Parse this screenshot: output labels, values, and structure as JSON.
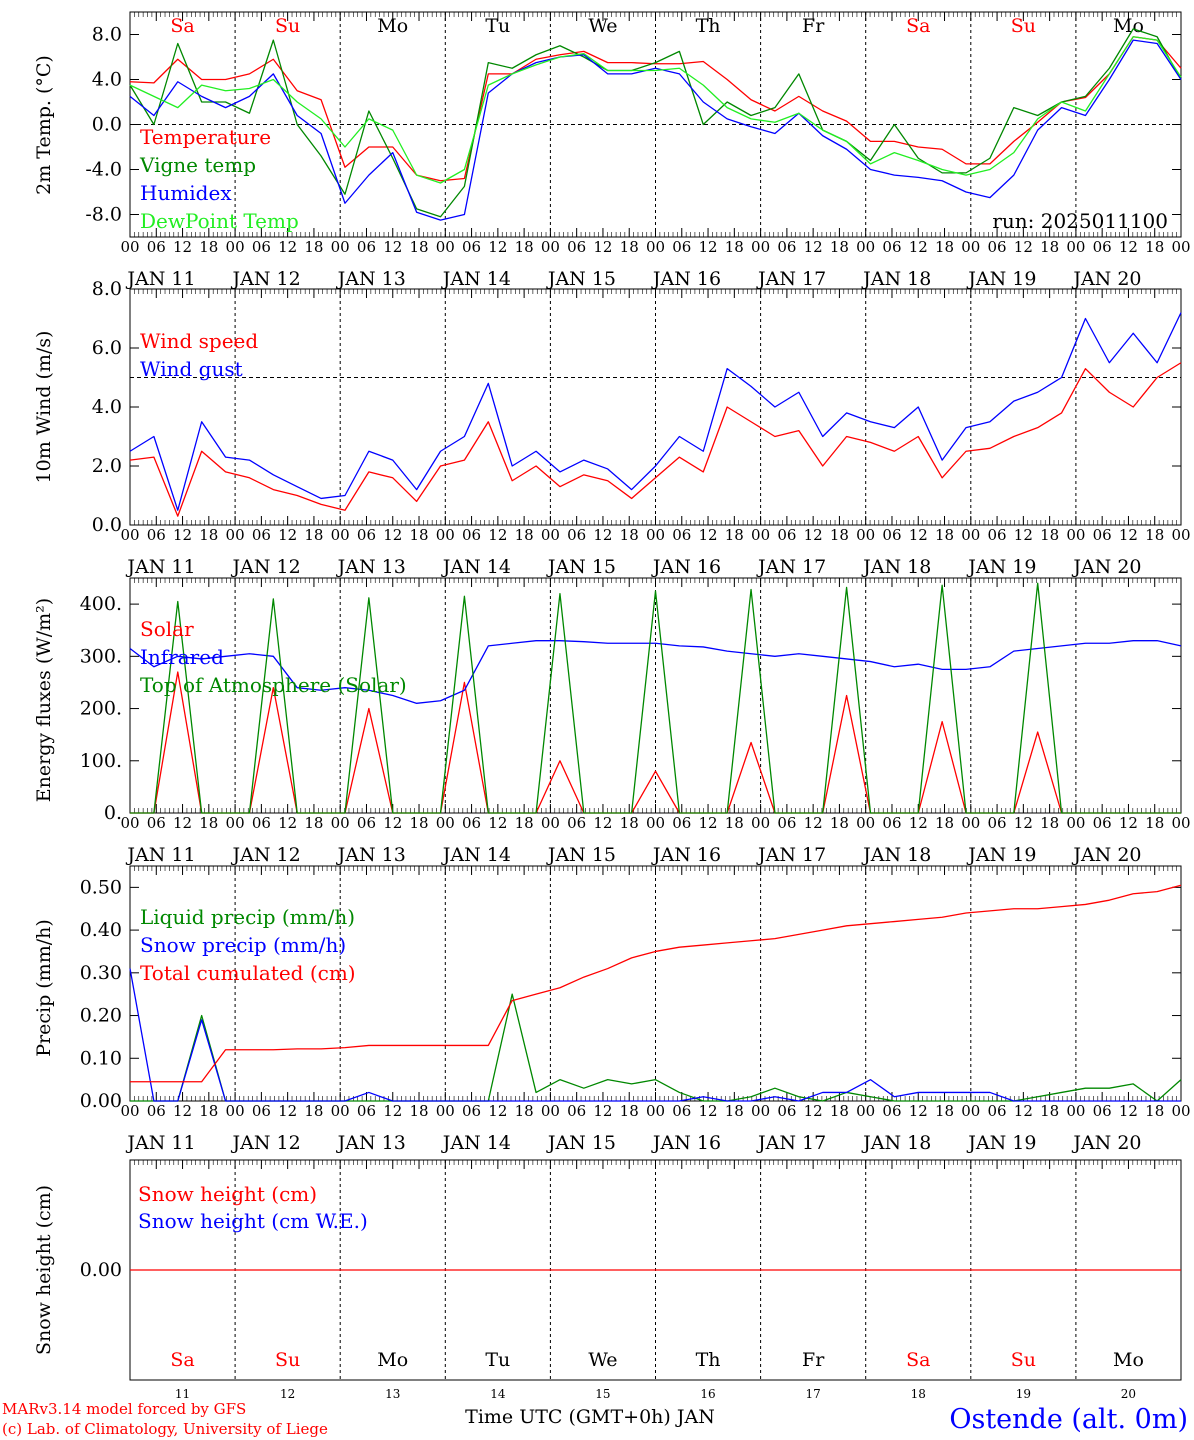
{
  "meta": {
    "run_label": "run: 2025011100",
    "credit_line1": "MARv3.14 model forced by GFS",
    "credit_line2": "(c) Lab. of Climatology, University of Liege",
    "station": "Ostende (alt. 0m)",
    "x_axis_title": "Time UTC (GMT+0h) JAN"
  },
  "colors": {
    "red": "#ff0000",
    "green": "#008800",
    "blue": "#0000ff",
    "light_green": "#22ee22",
    "weekend": "#ff0000",
    "weekday": "#000000",
    "credit": "#ff0000",
    "station": "#0000ff"
  },
  "timeline": {
    "start": "2025-01-11T00:00Z",
    "step_hours": 6,
    "hour_labels": [
      "00",
      "06",
      "12",
      "18"
    ],
    "date_labels": [
      "JAN 11",
      "JAN 12",
      "JAN 13",
      "JAN 14",
      "JAN 15",
      "JAN 16",
      "JAN 17",
      "JAN 18",
      "JAN 19",
      "JAN 20"
    ],
    "day_abbr": [
      "Sa",
      "Su",
      "Mo",
      "Tu",
      "We",
      "Th",
      "Fr",
      "Sa",
      "Su",
      "Mo"
    ],
    "day_numbers": [
      "11",
      "12",
      "13",
      "14",
      "15",
      "16",
      "17",
      "18",
      "19",
      "20"
    ],
    "weekend": [
      true,
      true,
      false,
      false,
      false,
      false,
      false,
      true,
      true,
      false
    ]
  },
  "chart_data": [
    {
      "type": "line",
      "ylabel": "2m Temp. (°C)",
      "ylim": [
        -10,
        10
      ],
      "yticks": [
        -8,
        -4,
        0,
        4,
        8
      ],
      "ytick_labels": [
        "-8.0",
        "-4.0",
        "0.0",
        "4.0",
        "8.0"
      ],
      "reference_line": 0,
      "series": [
        {
          "name": "Temperature",
          "color": "red",
          "values": [
            3.8,
            3.7,
            5.8,
            4.0,
            4.0,
            4.5,
            5.8,
            3.0,
            2.2,
            -3.8,
            -2.0,
            -2.0,
            -4.5,
            -5.0,
            -4.8,
            4.5,
            4.5,
            5.8,
            6.2,
            6.5,
            5.5,
            5.5,
            5.4,
            5.4,
            5.6,
            4.0,
            2.2,
            1.2,
            2.5,
            1.2,
            0.3,
            -1.5,
            -1.5,
            -2.0,
            -2.2,
            -3.5,
            -3.5,
            -1.5,
            0.2,
            2.0,
            2.4,
            4.5,
            7.8,
            7.5,
            5.0
          ]
        },
        {
          "name": "Vigne temp",
          "color": "green",
          "values": [
            3.5,
            0.0,
            7.2,
            2.0,
            2.0,
            1.0,
            7.5,
            0.0,
            -2.8,
            -6.2,
            1.2,
            -3.0,
            -7.5,
            -8.2,
            -5.5,
            5.5,
            5.0,
            6.2,
            7.0,
            6.0,
            4.8,
            4.8,
            5.5,
            6.5,
            0.0,
            2.0,
            0.8,
            1.5,
            4.5,
            -0.5,
            -1.5,
            -3.2,
            0.0,
            -3.0,
            -4.3,
            -4.3,
            -3.0,
            1.5,
            0.8,
            2.0,
            2.5,
            5.0,
            8.5,
            7.8,
            4.0
          ]
        },
        {
          "name": "Humidex",
          "color": "blue",
          "values": [
            2.5,
            0.8,
            3.8,
            2.5,
            1.5,
            2.5,
            4.5,
            0.8,
            -0.8,
            -7.0,
            -4.5,
            -2.5,
            -7.8,
            -8.5,
            -8.0,
            2.8,
            4.5,
            5.5,
            6.0,
            6.2,
            4.5,
            4.5,
            5.0,
            4.5,
            2.0,
            0.5,
            -0.2,
            -0.8,
            1.0,
            -1.0,
            -2.2,
            -4.0,
            -4.5,
            -4.7,
            -5.0,
            -6.0,
            -6.5,
            -4.5,
            -0.5,
            1.5,
            0.8,
            4.0,
            7.5,
            7.2,
            4.0
          ]
        },
        {
          "name": "DewPoint Temp",
          "color": "light_green",
          "values": [
            3.5,
            2.5,
            1.5,
            3.5,
            3.0,
            3.2,
            4.0,
            2.0,
            0.5,
            -2.0,
            0.5,
            -0.5,
            -4.5,
            -5.2,
            -4.0,
            3.5,
            4.5,
            5.3,
            6.0,
            6.3,
            4.8,
            4.8,
            4.8,
            5.0,
            3.5,
            1.5,
            0.5,
            0.2,
            1.0,
            -0.5,
            -1.5,
            -3.5,
            -2.5,
            -3.2,
            -4.0,
            -4.5,
            -4.0,
            -2.5,
            0.5,
            2.0,
            1.2,
            4.5,
            7.8,
            7.5,
            4.2
          ]
        }
      ]
    },
    {
      "type": "line",
      "ylabel": "10m Wind (m/s)",
      "ylim": [
        0,
        8
      ],
      "yticks": [
        0,
        2,
        4,
        6,
        8
      ],
      "ytick_labels": [
        "0.0",
        "2.0",
        "4.0",
        "6.0",
        "8.0"
      ],
      "reference_line": 5,
      "series": [
        {
          "name": "Wind speed",
          "color": "red",
          "values": [
            2.2,
            2.3,
            0.3,
            2.5,
            1.8,
            1.6,
            1.2,
            1.0,
            0.7,
            0.5,
            1.8,
            1.6,
            0.8,
            2.0,
            2.2,
            3.5,
            1.5,
            2.0,
            1.3,
            1.7,
            1.5,
            0.9,
            1.6,
            2.3,
            1.8,
            4.0,
            3.5,
            3.0,
            3.2,
            2.0,
            3.0,
            2.8,
            2.5,
            3.0,
            1.6,
            2.5,
            2.6,
            3.0,
            3.3,
            3.8,
            5.3,
            4.5,
            4.0,
            5.0,
            5.5
          ]
        },
        {
          "name": "Wind gust",
          "color": "blue",
          "values": [
            2.5,
            3.0,
            0.5,
            3.5,
            2.3,
            2.2,
            1.7,
            1.3,
            0.9,
            1.0,
            2.5,
            2.2,
            1.2,
            2.5,
            3.0,
            4.8,
            2.0,
            2.5,
            1.8,
            2.2,
            1.9,
            1.2,
            2.0,
            3.0,
            2.5,
            5.3,
            4.7,
            4.0,
            4.5,
            3.0,
            3.8,
            3.5,
            3.3,
            4.0,
            2.2,
            3.3,
            3.5,
            4.2,
            4.5,
            5.0,
            7.0,
            5.5,
            6.5,
            5.5,
            7.2
          ]
        }
      ]
    },
    {
      "type": "line",
      "ylabel": "Energy fluxes (W/m²)",
      "ylim": [
        0,
        450
      ],
      "yticks": [
        0,
        100,
        200,
        300,
        400
      ],
      "ytick_labels": [
        "0.",
        "100.",
        "200.",
        "300.",
        "400."
      ],
      "reference_line": null,
      "series": [
        {
          "name": "Solar",
          "color": "red",
          "values": [
            0,
            0,
            270,
            0,
            0,
            0,
            240,
            0,
            0,
            0,
            200,
            0,
            0,
            0,
            250,
            0,
            0,
            0,
            100,
            0,
            0,
            0,
            80,
            0,
            0,
            0,
            135,
            0,
            0,
            0,
            225,
            0,
            0,
            0,
            175,
            0,
            0,
            0,
            155,
            0,
            0,
            0,
            0,
            0,
            0
          ]
        },
        {
          "name": "Infrared",
          "color": "blue",
          "values": [
            315,
            280,
            300,
            295,
            300,
            305,
            300,
            240,
            235,
            240,
            235,
            225,
            210,
            215,
            235,
            320,
            325,
            330,
            330,
            328,
            325,
            325,
            325,
            320,
            318,
            310,
            305,
            300,
            305,
            300,
            295,
            290,
            280,
            285,
            275,
            275,
            280,
            310,
            315,
            320,
            325,
            325,
            330,
            330,
            320
          ]
        },
        {
          "name": "Top of Atmosphere (Solar)",
          "color": "green",
          "values": [
            0,
            0,
            405,
            0,
            0,
            0,
            410,
            0,
            0,
            0,
            412,
            0,
            0,
            0,
            415,
            0,
            0,
            0,
            420,
            0,
            0,
            0,
            425,
            0,
            0,
            0,
            428,
            0,
            0,
            0,
            432,
            0,
            0,
            0,
            436,
            0,
            0,
            0,
            440,
            0,
            0,
            0,
            0,
            0,
            0
          ]
        }
      ]
    },
    {
      "type": "line",
      "ylabel": "Precip (mm/h)",
      "ylim": [
        0,
        0.55
      ],
      "yticks": [
        0,
        0.1,
        0.2,
        0.3,
        0.4,
        0.5
      ],
      "ytick_labels": [
        "0.00",
        "0.10",
        "0.20",
        "0.30",
        "0.40",
        "0.50"
      ],
      "reference_line": null,
      "series": [
        {
          "name": "Liquid precip (mm/h)",
          "color": "green",
          "values": [
            0.0,
            0.0,
            0.0,
            0.2,
            0.0,
            0.0,
            0.0,
            0.0,
            0.0,
            0.0,
            0.0,
            0.0,
            0.0,
            0.0,
            0.0,
            0.0,
            0.25,
            0.02,
            0.05,
            0.03,
            0.05,
            0.04,
            0.05,
            0.02,
            0.0,
            0.0,
            0.01,
            0.03,
            0.01,
            0.0,
            0.02,
            0.01,
            0.0,
            0.0,
            0.0,
            0.0,
            0.0,
            0.0,
            0.01,
            0.02,
            0.03,
            0.03,
            0.04,
            0.0,
            0.05
          ]
        },
        {
          "name": "Snow precip (mm/h)",
          "color": "blue",
          "values": [
            0.31,
            0.0,
            0.0,
            0.19,
            0.0,
            0.0,
            0.0,
            0.0,
            0.0,
            0.0,
            0.02,
            0.0,
            0.0,
            0.0,
            0.0,
            0.0,
            0.0,
            0.0,
            0.0,
            0.0,
            0.0,
            0.0,
            0.0,
            0.0,
            0.01,
            0.0,
            0.0,
            0.01,
            0.0,
            0.02,
            0.02,
            0.05,
            0.01,
            0.02,
            0.02,
            0.02,
            0.02,
            0.0,
            0.0,
            0.0,
            0.0,
            0.0,
            0.0,
            0.0,
            0.0
          ]
        },
        {
          "name": "Total cumulated (cm)",
          "color": "red",
          "values": [
            0.045,
            0.045,
            0.045,
            0.045,
            0.12,
            0.12,
            0.12,
            0.122,
            0.122,
            0.125,
            0.13,
            0.13,
            0.13,
            0.13,
            0.13,
            0.13,
            0.235,
            0.25,
            0.265,
            0.29,
            0.31,
            0.335,
            0.35,
            0.36,
            0.365,
            0.37,
            0.375,
            0.38,
            0.39,
            0.4,
            0.41,
            0.415,
            0.42,
            0.425,
            0.43,
            0.44,
            0.445,
            0.45,
            0.45,
            0.455,
            0.46,
            0.47,
            0.485,
            0.49,
            0.505
          ]
        }
      ]
    },
    {
      "type": "line",
      "ylabel": "Snow height (cm)",
      "ylim": [
        -1,
        1
      ],
      "yticks": [
        0
      ],
      "ytick_labels": [
        "0.00"
      ],
      "reference_line": null,
      "series": [
        {
          "name": "Snow height (cm)",
          "color": "red",
          "values": [
            0,
            0
          ]
        },
        {
          "name": "Snow height (cm W.E.)",
          "color": "blue",
          "values": []
        }
      ]
    }
  ]
}
